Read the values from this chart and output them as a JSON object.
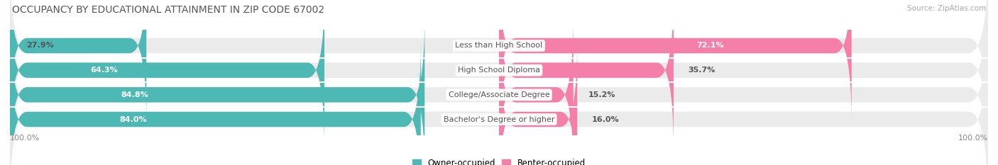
{
  "title": "OCCUPANCY BY EDUCATIONAL ATTAINMENT IN ZIP CODE 67002",
  "source": "Source: ZipAtlas.com",
  "categories": [
    "Less than High School",
    "High School Diploma",
    "College/Associate Degree",
    "Bachelor's Degree or higher"
  ],
  "owner_pct": [
    27.9,
    64.3,
    84.8,
    84.0
  ],
  "renter_pct": [
    72.1,
    35.7,
    15.2,
    16.0
  ],
  "owner_color": "#4db8b4",
  "renter_color": "#f47fa8",
  "bg_color": "#ffffff",
  "row_bg_color": "#ebebeb",
  "title_color": "#555555",
  "label_color_inside": "#ffffff",
  "label_color_outside": "#555555",
  "cat_label_color": "#555555",
  "title_fontsize": 10,
  "pct_fontsize": 8,
  "cat_fontsize": 8,
  "bar_height": 0.62,
  "legend_label_owner": "Owner-occupied",
  "legend_label_renter": "Renter-occupied",
  "axis_label_left": "100.0%",
  "axis_label_right": "100.0%",
  "source_color": "#aaaaaa"
}
